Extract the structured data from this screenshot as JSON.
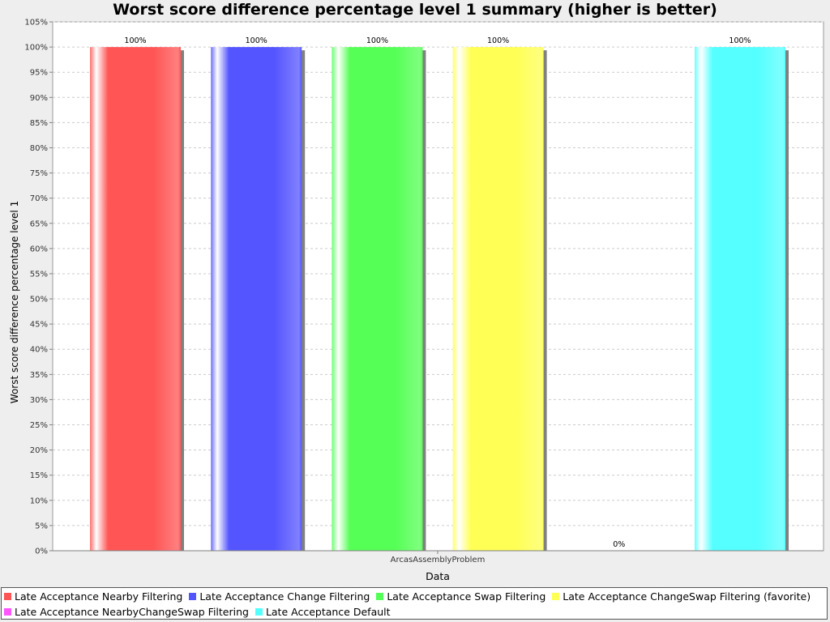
{
  "chart_data": {
    "type": "bar",
    "title": "Worst score difference percentage level 1 summary (higher is better)",
    "xlabel": "Data",
    "ylabel": "Worst score difference percentage level 1",
    "categories": [
      "ArcasAssemblyProblem"
    ],
    "ylim": [
      0,
      105
    ],
    "yticks": [
      "0%",
      "5%",
      "10%",
      "15%",
      "20%",
      "25%",
      "30%",
      "35%",
      "40%",
      "45%",
      "50%",
      "55%",
      "60%",
      "65%",
      "70%",
      "75%",
      "80%",
      "85%",
      "90%",
      "95%",
      "100%",
      "105%"
    ],
    "grid": true,
    "legend_position": "bottom",
    "series": [
      {
        "name": "Late Acceptance Nearby Filtering",
        "values": [
          100
        ],
        "label": "100%",
        "color": "#ff5555"
      },
      {
        "name": "Late Acceptance Change Filtering",
        "values": [
          100
        ],
        "label": "100%",
        "color": "#5555ff"
      },
      {
        "name": "Late Acceptance Swap Filtering",
        "values": [
          100
        ],
        "label": "100%",
        "color": "#55ff55"
      },
      {
        "name": "Late Acceptance ChangeSwap Filtering (favorite)",
        "values": [
          100
        ],
        "label": "100%",
        "color": "#ffff55"
      },
      {
        "name": "Late Acceptance NearbyChangeSwap Filtering",
        "values": [
          0
        ],
        "label": "0%",
        "color": "#ff55ff"
      },
      {
        "name": "Late Acceptance Default",
        "values": [
          100
        ],
        "label": "100%",
        "color": "#55ffff"
      }
    ]
  }
}
